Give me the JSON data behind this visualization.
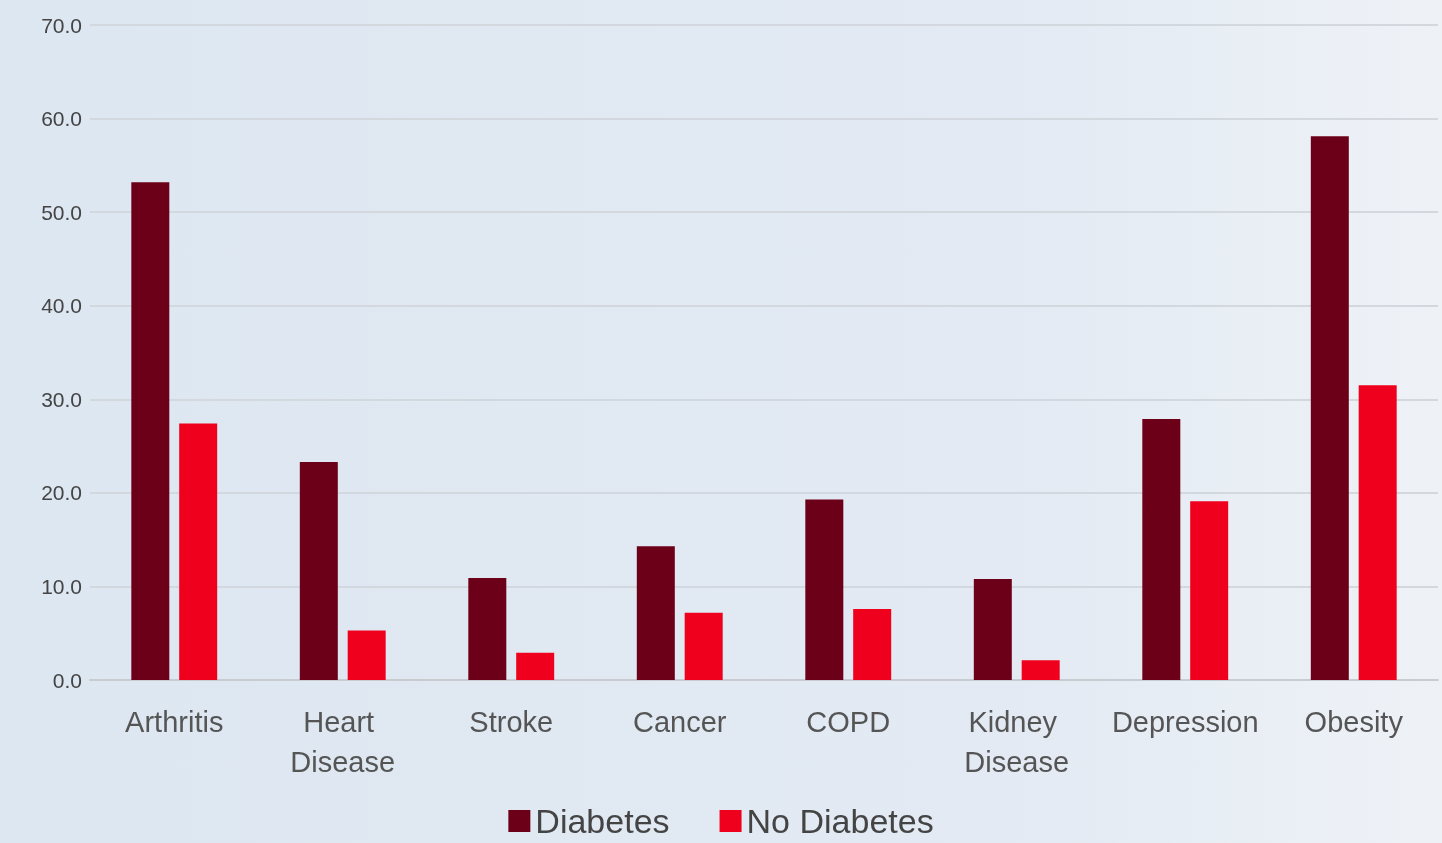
{
  "chart_data": {
    "type": "bar",
    "categories": [
      "Arthritis",
      "Heart Disease",
      "Stroke",
      "Cancer",
      "COPD",
      "Kidney Disease",
      "Depression",
      "Obesity"
    ],
    "series": [
      {
        "name": "Diabetes",
        "color": "#6d0019",
        "values": [
          53.2,
          23.3,
          10.9,
          14.3,
          19.3,
          10.8,
          27.9,
          58.1
        ]
      },
      {
        "name": "No Diabetes",
        "color": "#ef001c",
        "values": [
          27.4,
          5.3,
          2.9,
          7.2,
          7.6,
          2.1,
          19.1,
          31.5
        ]
      }
    ],
    "ylim": [
      0,
      70
    ],
    "yticks": [
      {
        "value": 0,
        "label": "0.0"
      },
      {
        "value": 10,
        "label": "10.0"
      },
      {
        "value": 20,
        "label": "20.0"
      },
      {
        "value": 30,
        "label": "30.0"
      },
      {
        "value": 40,
        "label": "40.0"
      },
      {
        "value": 50,
        "label": "50.0"
      },
      {
        "value": 60,
        "label": "60.0"
      },
      {
        "value": 70,
        "label": "70.0"
      }
    ],
    "grid": "y",
    "legend": "bottom"
  }
}
